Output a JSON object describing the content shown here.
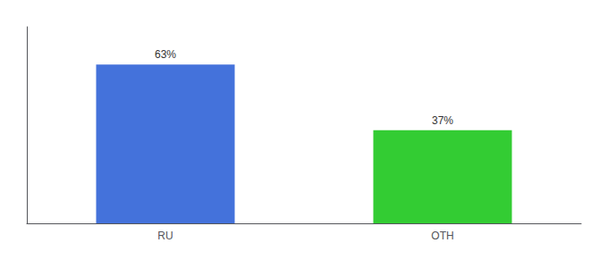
{
  "chart_data": {
    "type": "bar",
    "categories": [
      "RU",
      "OTH"
    ],
    "values": [
      63,
      37
    ],
    "value_labels": [
      "63%",
      "37%"
    ],
    "colors": [
      "#4472db",
      "#33cc33"
    ],
    "ylim": [
      0,
      78
    ],
    "grid": false,
    "data_labels": true,
    "tick_labels": "x"
  }
}
